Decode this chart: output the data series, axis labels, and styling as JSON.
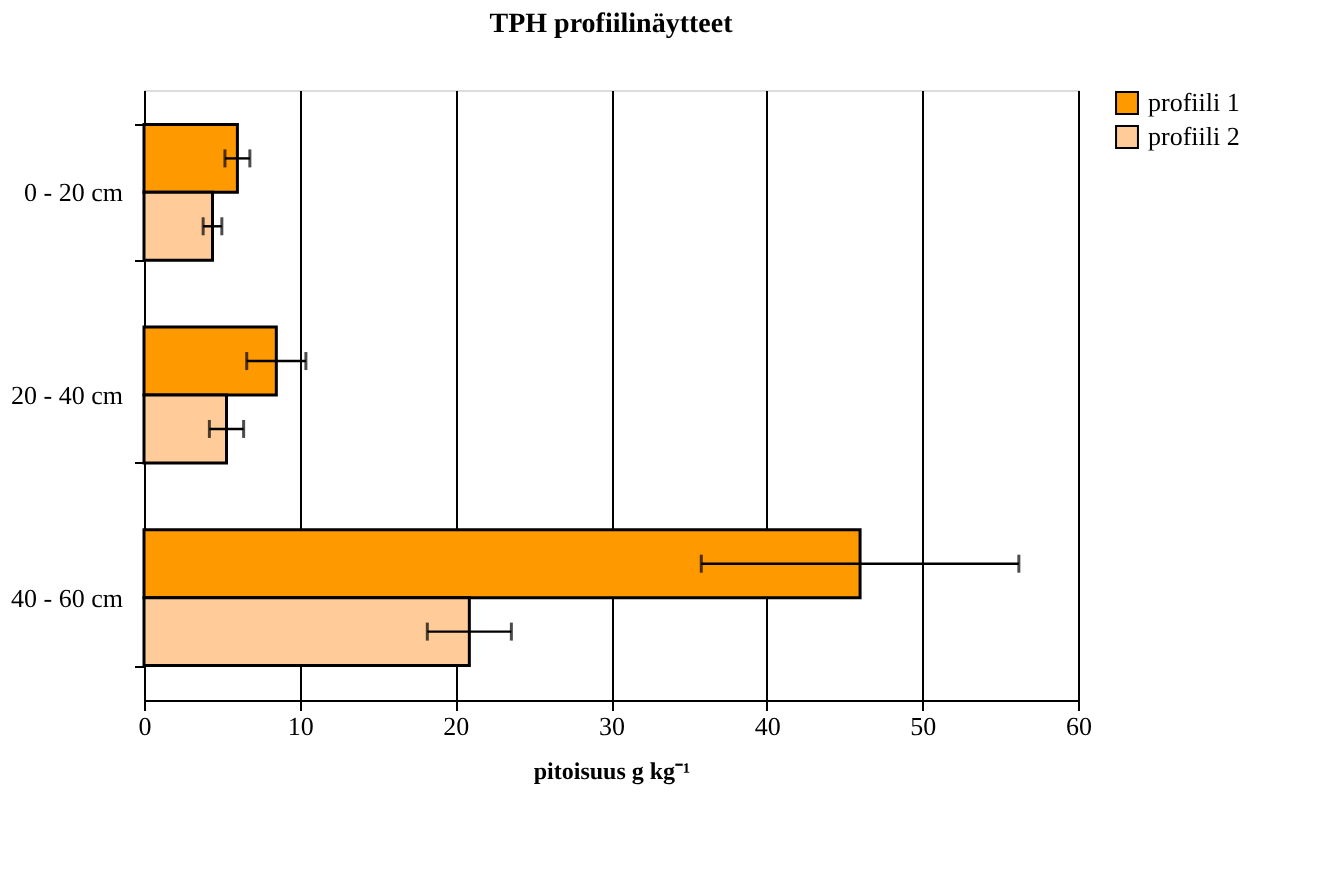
{
  "chart_data": {
    "type": "bar",
    "orientation": "horizontal",
    "title": "TPH profiilinäytteet",
    "xlabel": "pitoisuus g kg⁻¹",
    "categories": [
      "0 - 20 cm",
      "20 - 40 cm",
      "40 - 60 cm"
    ],
    "series": [
      {
        "name": "profiili 1",
        "color": "#ff9900",
        "values": [
          6.0,
          8.5,
          46.0
        ],
        "errors": [
          0.8,
          1.9,
          10.2
        ]
      },
      {
        "name": "profiili 2",
        "color": "#ffcc99",
        "values": [
          4.4,
          5.3,
          20.9
        ],
        "errors": [
          0.6,
          1.1,
          2.7
        ]
      }
    ],
    "xlim": [
      0,
      60
    ],
    "xticks": [
      0,
      10,
      20,
      30,
      40,
      50,
      60
    ],
    "grid": "x",
    "legend": "right"
  }
}
